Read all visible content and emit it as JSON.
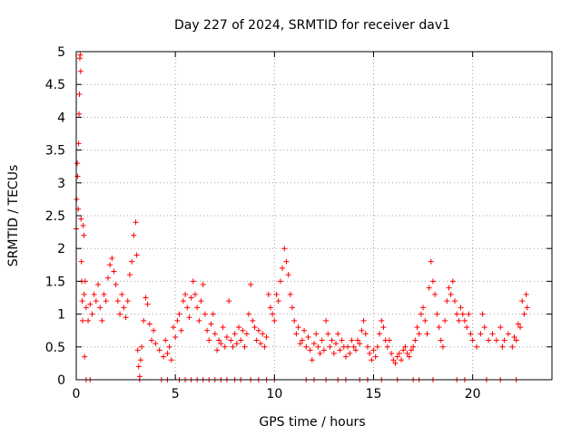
{
  "chart_data": {
    "type": "scatter",
    "title": "Day 227 of 2024, SRMTID for receiver dav1",
    "xlabel": "GPS time / hours",
    "ylabel": "SRMTID / TECUs",
    "xlim": [
      0,
      24
    ],
    "ylim": [
      0,
      5
    ],
    "x_ticks": [
      "0",
      "5",
      "10",
      "15",
      "20"
    ],
    "y_ticks": [
      "0",
      "0.5",
      "1",
      "1.5",
      "2",
      "2.5",
      "3",
      "3.5",
      "4",
      "4.5",
      "5"
    ],
    "grid": true,
    "marker": "plus",
    "color": "#ff0000",
    "series": [
      {
        "name": "SRMTID",
        "points": [
          [
            0.0,
            2.3
          ],
          [
            0.02,
            2.75
          ],
          [
            0.05,
            3.3
          ],
          [
            0.07,
            3.1
          ],
          [
            0.1,
            2.6
          ],
          [
            0.12,
            3.6
          ],
          [
            0.14,
            4.05
          ],
          [
            0.16,
            4.35
          ],
          [
            0.18,
            4.9
          ],
          [
            0.2,
            4.95
          ],
          [
            0.22,
            4.7
          ],
          [
            0.24,
            2.45
          ],
          [
            0.26,
            1.8
          ],
          [
            0.28,
            1.5
          ],
          [
            0.3,
            1.2
          ],
          [
            0.32,
            0.9
          ],
          [
            0.35,
            2.35
          ],
          [
            0.38,
            2.2
          ],
          [
            0.4,
            1.3
          ],
          [
            0.42,
            0.35
          ],
          [
            0.45,
            1.5
          ],
          [
            0.5,
            1.1
          ],
          [
            0.6,
            0.9
          ],
          [
            0.7,
            1.15
          ],
          [
            0.8,
            1.0
          ],
          [
            0.9,
            1.3
          ],
          [
            1.0,
            1.2
          ],
          [
            1.1,
            1.45
          ],
          [
            1.2,
            1.1
          ],
          [
            1.3,
            0.9
          ],
          [
            1.4,
            1.3
          ],
          [
            1.5,
            1.2
          ],
          [
            1.6,
            1.55
          ],
          [
            1.7,
            1.75
          ],
          [
            1.8,
            1.85
          ],
          [
            1.9,
            1.65
          ],
          [
            2.0,
            1.45
          ],
          [
            2.1,
            1.2
          ],
          [
            2.2,
            1.0
          ],
          [
            2.3,
            1.3
          ],
          [
            2.4,
            1.1
          ],
          [
            2.5,
            0.95
          ],
          [
            2.6,
            1.2
          ],
          [
            2.7,
            1.6
          ],
          [
            2.8,
            1.8
          ],
          [
            2.9,
            2.2
          ],
          [
            3.0,
            2.4
          ],
          [
            3.05,
            1.9
          ],
          [
            3.1,
            0.45
          ],
          [
            3.15,
            0.2
          ],
          [
            3.2,
            0.05
          ],
          [
            3.25,
            0.3
          ],
          [
            3.3,
            0.5
          ],
          [
            3.4,
            0.9
          ],
          [
            3.5,
            1.25
          ],
          [
            3.6,
            1.15
          ],
          [
            3.7,
            0.85
          ],
          [
            3.8,
            0.6
          ],
          [
            3.9,
            0.75
          ],
          [
            4.0,
            0.55
          ],
          [
            4.2,
            0.45
          ],
          [
            4.4,
            0.35
          ],
          [
            4.5,
            0.6
          ],
          [
            4.6,
            0.4
          ],
          [
            4.7,
            0.5
          ],
          [
            4.8,
            0.3
          ],
          [
            4.9,
            0.8
          ],
          [
            5.0,
            0.65
          ],
          [
            5.1,
            0.9
          ],
          [
            5.2,
            1.0
          ],
          [
            5.3,
            0.75
          ],
          [
            5.4,
            1.2
          ],
          [
            5.5,
            1.3
          ],
          [
            5.6,
            1.1
          ],
          [
            5.7,
            0.95
          ],
          [
            5.8,
            1.25
          ],
          [
            5.9,
            1.5
          ],
          [
            6.0,
            1.3
          ],
          [
            6.1,
            1.1
          ],
          [
            6.2,
            0.9
          ],
          [
            6.3,
            1.2
          ],
          [
            6.4,
            1.45
          ],
          [
            6.5,
            1.0
          ],
          [
            6.6,
            0.75
          ],
          [
            6.7,
            0.6
          ],
          [
            6.8,
            0.85
          ],
          [
            6.9,
            1.0
          ],
          [
            7.0,
            0.7
          ],
          [
            7.1,
            0.45
          ],
          [
            7.2,
            0.6
          ],
          [
            7.3,
            0.55
          ],
          [
            7.4,
            0.8
          ],
          [
            7.5,
            0.5
          ],
          [
            7.6,
            0.65
          ],
          [
            7.7,
            1.2
          ],
          [
            7.8,
            0.6
          ],
          [
            7.9,
            0.5
          ],
          [
            8.0,
            0.7
          ],
          [
            8.1,
            0.55
          ],
          [
            8.2,
            0.8
          ],
          [
            8.3,
            0.6
          ],
          [
            8.4,
            0.75
          ],
          [
            8.5,
            0.5
          ],
          [
            8.6,
            0.7
          ],
          [
            8.7,
            1.0
          ],
          [
            8.8,
            1.45
          ],
          [
            8.9,
            0.9
          ],
          [
            9.0,
            0.8
          ],
          [
            9.1,
            0.6
          ],
          [
            9.2,
            0.75
          ],
          [
            9.3,
            0.55
          ],
          [
            9.4,
            0.7
          ],
          [
            9.5,
            0.5
          ],
          [
            9.6,
            0.65
          ],
          [
            9.7,
            1.3
          ],
          [
            9.8,
            1.1
          ],
          [
            9.9,
            1.0
          ],
          [
            10.0,
            0.9
          ],
          [
            10.1,
            1.3
          ],
          [
            10.2,
            1.2
          ],
          [
            10.3,
            1.5
          ],
          [
            10.4,
            1.7
          ],
          [
            10.5,
            2.0
          ],
          [
            10.6,
            1.8
          ],
          [
            10.7,
            1.6
          ],
          [
            10.8,
            1.3
          ],
          [
            10.9,
            1.1
          ],
          [
            11.0,
            0.9
          ],
          [
            11.1,
            0.7
          ],
          [
            11.2,
            0.8
          ],
          [
            11.3,
            0.55
          ],
          [
            11.4,
            0.6
          ],
          [
            11.5,
            0.75
          ],
          [
            11.6,
            0.5
          ],
          [
            11.7,
            0.65
          ],
          [
            11.8,
            0.45
          ],
          [
            11.9,
            0.3
          ],
          [
            12.0,
            0.55
          ],
          [
            12.1,
            0.7
          ],
          [
            12.2,
            0.5
          ],
          [
            12.3,
            0.4
          ],
          [
            12.4,
            0.6
          ],
          [
            12.5,
            0.45
          ],
          [
            12.6,
            0.9
          ],
          [
            12.7,
            0.7
          ],
          [
            12.8,
            0.5
          ],
          [
            12.9,
            0.6
          ],
          [
            13.0,
            0.4
          ],
          [
            13.1,
            0.55
          ],
          [
            13.2,
            0.7
          ],
          [
            13.3,
            0.45
          ],
          [
            13.4,
            0.6
          ],
          [
            13.5,
            0.5
          ],
          [
            13.6,
            0.35
          ],
          [
            13.7,
            0.5
          ],
          [
            13.8,
            0.4
          ],
          [
            13.9,
            0.6
          ],
          [
            14.0,
            0.5
          ],
          [
            14.1,
            0.45
          ],
          [
            14.2,
            0.6
          ],
          [
            14.3,
            0.55
          ],
          [
            14.4,
            0.75
          ],
          [
            14.5,
            0.9
          ],
          [
            14.6,
            0.7
          ],
          [
            14.7,
            0.5
          ],
          [
            14.8,
            0.4
          ],
          [
            14.9,
            0.3
          ],
          [
            15.0,
            0.45
          ],
          [
            15.1,
            0.35
          ],
          [
            15.2,
            0.5
          ],
          [
            15.3,
            0.7
          ],
          [
            15.4,
            0.9
          ],
          [
            15.5,
            0.8
          ],
          [
            15.6,
            0.6
          ],
          [
            15.7,
            0.5
          ],
          [
            15.8,
            0.6
          ],
          [
            15.9,
            0.4
          ],
          [
            16.0,
            0.3
          ],
          [
            16.1,
            0.25
          ],
          [
            16.2,
            0.35
          ],
          [
            16.3,
            0.4
          ],
          [
            16.4,
            0.3
          ],
          [
            16.5,
            0.45
          ],
          [
            16.6,
            0.5
          ],
          [
            16.7,
            0.4
          ],
          [
            16.8,
            0.35
          ],
          [
            16.9,
            0.45
          ],
          [
            17.0,
            0.5
          ],
          [
            17.1,
            0.6
          ],
          [
            17.2,
            0.8
          ],
          [
            17.3,
            0.7
          ],
          [
            17.4,
            1.0
          ],
          [
            17.5,
            1.1
          ],
          [
            17.6,
            0.9
          ],
          [
            17.7,
            0.7
          ],
          [
            17.8,
            1.4
          ],
          [
            17.9,
            1.8
          ],
          [
            18.0,
            1.5
          ],
          [
            18.1,
            1.3
          ],
          [
            18.2,
            1.0
          ],
          [
            18.3,
            0.8
          ],
          [
            18.4,
            0.6
          ],
          [
            18.5,
            0.5
          ],
          [
            18.6,
            0.9
          ],
          [
            18.7,
            1.2
          ],
          [
            18.8,
            1.4
          ],
          [
            18.9,
            1.3
          ],
          [
            19.0,
            1.5
          ],
          [
            19.1,
            1.2
          ],
          [
            19.2,
            1.0
          ],
          [
            19.3,
            0.9
          ],
          [
            19.4,
            1.1
          ],
          [
            19.5,
            1.0
          ],
          [
            19.6,
            0.9
          ],
          [
            19.7,
            0.8
          ],
          [
            19.8,
            1.0
          ],
          [
            19.9,
            0.7
          ],
          [
            20.0,
            0.6
          ],
          [
            20.2,
            0.5
          ],
          [
            20.4,
            0.7
          ],
          [
            20.5,
            1.0
          ],
          [
            20.6,
            0.8
          ],
          [
            20.8,
            0.6
          ],
          [
            21.0,
            0.7
          ],
          [
            21.2,
            0.6
          ],
          [
            21.4,
            0.8
          ],
          [
            21.5,
            0.5
          ],
          [
            21.6,
            0.6
          ],
          [
            21.8,
            0.7
          ],
          [
            22.0,
            0.5
          ],
          [
            22.1,
            0.65
          ],
          [
            22.2,
            0.6
          ],
          [
            22.3,
            0.85
          ],
          [
            22.4,
            0.8
          ],
          [
            22.5,
            1.2
          ],
          [
            22.6,
            1.0
          ],
          [
            22.7,
            1.3
          ],
          [
            22.75,
            1.1
          ],
          [
            0.5,
            0.0
          ],
          [
            0.7,
            0.0
          ],
          [
            3.2,
            0.0
          ],
          [
            4.3,
            0.0
          ],
          [
            4.6,
            0.0
          ],
          [
            5.2,
            0.0
          ],
          [
            5.5,
            0.0
          ],
          [
            5.8,
            0.0
          ],
          [
            6.1,
            0.0
          ],
          [
            6.4,
            0.0
          ],
          [
            6.7,
            0.0
          ],
          [
            7.0,
            0.0
          ],
          [
            7.3,
            0.0
          ],
          [
            7.6,
            0.0
          ],
          [
            8.0,
            0.0
          ],
          [
            8.3,
            0.0
          ],
          [
            8.8,
            0.0
          ],
          [
            9.2,
            0.0
          ],
          [
            9.6,
            0.0
          ],
          [
            10.0,
            0.0
          ],
          [
            11.6,
            0.0
          ],
          [
            12.0,
            0.0
          ],
          [
            12.6,
            0.0
          ],
          [
            13.2,
            0.0
          ],
          [
            13.6,
            0.0
          ],
          [
            14.3,
            0.0
          ],
          [
            14.7,
            0.0
          ],
          [
            15.4,
            0.0
          ],
          [
            16.2,
            0.0
          ],
          [
            17.0,
            0.0
          ],
          [
            17.3,
            0.0
          ],
          [
            18.0,
            0.0
          ],
          [
            19.2,
            0.0
          ],
          [
            19.6,
            0.0
          ],
          [
            20.7,
            0.0
          ],
          [
            21.4,
            0.0
          ],
          [
            22.2,
            0.0
          ]
        ]
      }
    ]
  }
}
